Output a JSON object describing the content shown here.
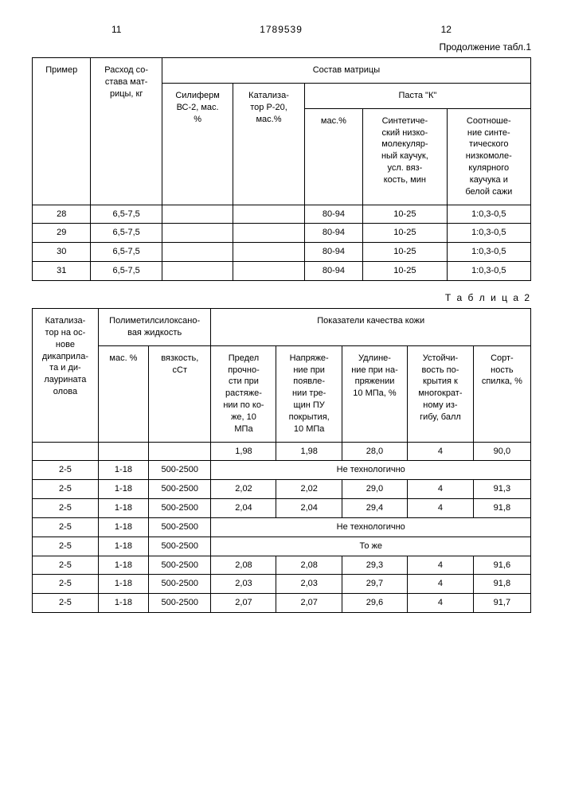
{
  "header": {
    "page_left": "11",
    "doc_no": "1789539",
    "page_right": "12"
  },
  "table1": {
    "caption": "Продолжение табл.1",
    "h": {
      "col1": "Пример",
      "col2": "Расход со-\nстава мат-\nрицы, кг",
      "group": "Состав матрицы",
      "col3": "Силиферм\nВС-2, мас.\n%",
      "col4": "Катализа-\nтор Р-20,\nмас.%",
      "pasteK": "Паста \"К\"",
      "col5": "мас.%",
      "col6": "Синтетиче-\nский низко-\nмолекуляр-\nный каучук,\nусл. вяз-\nкость, мин",
      "col7": "Соотноше-\nние синте-\nтического\nнизкомоле-\nкулярного\nкаучука и\nбелой сажи"
    },
    "rows": [
      {
        "c1": "28",
        "c2": "6,5-7,5",
        "c3": "",
        "c4": "",
        "c5": "80-94",
        "c6": "10-25",
        "c7": "1:0,3-0,5"
      },
      {
        "c1": "29",
        "c2": "6,5-7,5",
        "c3": "",
        "c4": "",
        "c5": "80-94",
        "c6": "10-25",
        "c7": "1:0,3-0,5"
      },
      {
        "c1": "30",
        "c2": "6,5-7,5",
        "c3": "",
        "c4": "",
        "c5": "80-94",
        "c6": "10-25",
        "c7": "1:0,3-0,5"
      },
      {
        "c1": "31",
        "c2": "6,5-7,5",
        "c3": "",
        "c4": "",
        "c5": "80-94",
        "c6": "10-25",
        "c7": "1:0,3-0,5"
      }
    ]
  },
  "table2": {
    "caption": "Т а б л и ц а 2",
    "h": {
      "col1": "Катализа-\nтор на ос-\nнове\nдикаприла-\nта и ди-\nлаурината\nолова",
      "polyGroup": "Полиметилсилоксано-\nвая жидкость",
      "col2": "мас. %",
      "col3": "вязкость,\nсСт",
      "qualGroup": "Показатели качества кожи",
      "col4": "Предел\nпрочно-\nсти при\nрастяже-\nнии по ко-\nже, 10\nМПа",
      "col5": "Напряже-\nние при\nпоявле-\nнии тре-\nщин ПУ\nпокрытия,\n10 МПа",
      "col6": "Удлине-\nние при на-\nпряжении\n10 МПа, %",
      "col7": "Устойчи-\nвость по-\nкрытия к\nмногократ-\nному из-\nгибу, балл",
      "col8": "Сорт-\nность\nспилка, %"
    },
    "rows": [
      {
        "type": "data",
        "c1": "",
        "c2": "",
        "c3": "",
        "c4": "1,98",
        "c5": "1,98",
        "c6": "28,0",
        "c7": "4",
        "c8": "90,0"
      },
      {
        "type": "merge",
        "c1": "2-5",
        "c2": "1-18",
        "c3": "500-2500",
        "text": "Не   технологично"
      },
      {
        "type": "data",
        "c1": "2-5",
        "c2": "1-18",
        "c3": "500-2500",
        "c4": "2,02",
        "c5": "2,02",
        "c6": "29,0",
        "c7": "4",
        "c8": "91,3"
      },
      {
        "type": "data",
        "c1": "2-5",
        "c2": "1-18",
        "c3": "500-2500",
        "c4": "2,04",
        "c5": "2,04",
        "c6": "29,4",
        "c7": "4",
        "c8": "91,8"
      },
      {
        "type": "merge",
        "c1": "2-5",
        "c2": "1-18",
        "c3": "500-2500",
        "text": "Не   технологично"
      },
      {
        "type": "merge",
        "c1": "2-5",
        "c2": "1-18",
        "c3": "500-2500",
        "text": "То же"
      },
      {
        "type": "data",
        "c1": "2-5",
        "c2": "1-18",
        "c3": "500-2500",
        "c4": "2,08",
        "c5": "2,08",
        "c6": "29,3",
        "c7": "4",
        "c8": "91,6"
      },
      {
        "type": "data",
        "c1": "2-5",
        "c2": "1-18",
        "c3": "500-2500",
        "c4": "2,03",
        "c5": "2,03",
        "c6": "29,7",
        "c7": "4",
        "c8": "91,8"
      },
      {
        "type": "data",
        "c1": "2-5",
        "c2": "1-18",
        "c3": "500-2500",
        "c4": "2,07",
        "c5": "2,07",
        "c6": "29,6",
        "c7": "4",
        "c8": "91,7"
      }
    ]
  }
}
